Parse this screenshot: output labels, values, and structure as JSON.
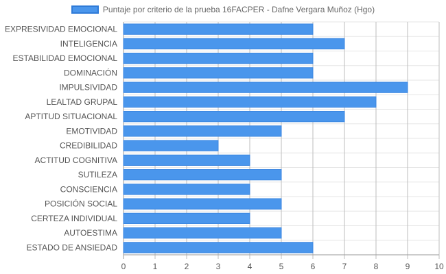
{
  "chart_data": {
    "type": "bar",
    "orientation": "horizontal",
    "categories": [
      "EXPRESIVIDAD EMOCIONAL",
      "INTELIGENCIA",
      "ESTABILIDAD EMOCIONAL",
      "DOMINACIÓN",
      "IMPULSIVIDAD",
      "LEALTAD GRUPAL",
      "APTITUD SITUACIONAL",
      "EMOTIVIDAD",
      "CREDIBILIDAD",
      "ACTITUD COGNITIVA",
      "SUTILEZA",
      "CONSCIENCIA",
      "POSICIÓN SOCIAL",
      "CERTEZA INDIVIDUAL",
      "AUTOESTIMA",
      "ESTADO DE ANSIEDAD"
    ],
    "series": [
      {
        "name": "Puntaje por criterio de la prueba 16FACPER - Dafne Vergara Muñoz (Hgo)",
        "values": [
          6,
          7,
          6,
          6,
          9,
          8,
          7,
          5,
          3,
          4,
          5,
          4,
          5,
          4,
          5,
          6
        ],
        "color": "#4a96ec"
      }
    ],
    "xlim": [
      0,
      10
    ],
    "x_ticks": [
      "0",
      "1",
      "2",
      "3",
      "4",
      "5",
      "6",
      "7",
      "8",
      "9",
      "10"
    ],
    "grid": true,
    "legend_position": "top"
  }
}
